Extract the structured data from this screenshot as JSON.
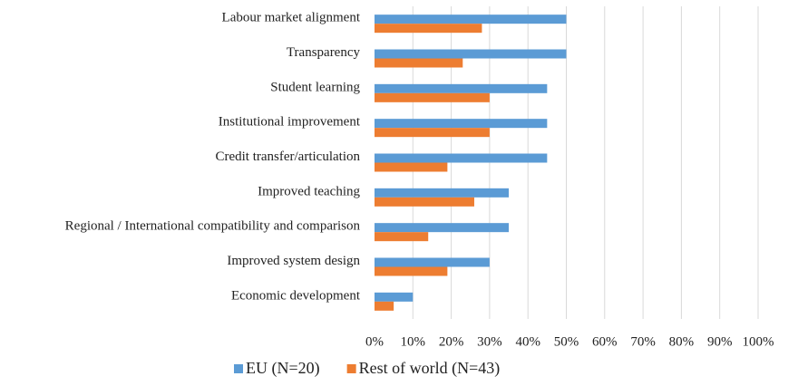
{
  "chart_data": {
    "type": "hbar",
    "categories": [
      "Labour market alignment",
      "Transparency",
      "Student learning",
      "Institutional improvement",
      "Credit transfer/articulation",
      "Improved teaching",
      "Regional / International compatibility and comparison",
      "Improved system design",
      "Economic development"
    ],
    "series": [
      {
        "name": "EU (N=20)",
        "color": "#5b9bd5",
        "values": [
          50,
          50,
          45,
          45,
          45,
          35,
          35,
          30,
          10
        ]
      },
      {
        "name": "Rest of world (N=43)",
        "color": "#ed7d31",
        "values": [
          28,
          23,
          30,
          30,
          19,
          26,
          14,
          19,
          5
        ]
      }
    ],
    "xlim": [
      0,
      100
    ],
    "xticks": [
      {
        "value": 0,
        "label": "0%"
      },
      {
        "value": 10,
        "label": "10%"
      },
      {
        "value": 20,
        "label": "20%"
      },
      {
        "value": 30,
        "label": "30%"
      },
      {
        "value": 40,
        "label": "40%"
      },
      {
        "value": 50,
        "label": "50%"
      },
      {
        "value": 60,
        "label": "60%"
      },
      {
        "value": 70,
        "label": "70%"
      },
      {
        "value": 80,
        "label": "80%"
      },
      {
        "value": 90,
        "label": "90%"
      },
      {
        "value": 100,
        "label": "100%"
      }
    ],
    "grid": true,
    "legend": "bottom"
  }
}
